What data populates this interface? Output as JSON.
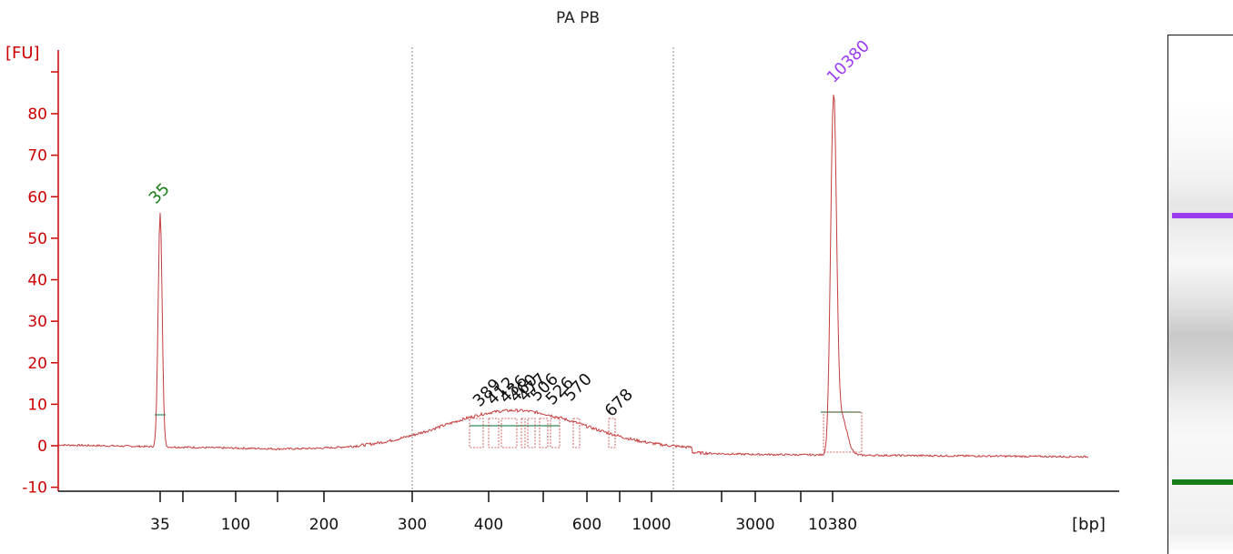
{
  "title": "PA PB",
  "chart_data": {
    "type": "line",
    "title": "PA PB",
    "ylabel": "[FU]",
    "xlabel": "[bp]",
    "ylim": [
      -12,
      98
    ],
    "y_ticks": [
      "-10",
      "0",
      "10",
      "20",
      "30",
      "40",
      "50",
      "60",
      "70",
      "80"
    ],
    "x_tick_labels": [
      "35",
      "100",
      "200",
      "300",
      "400",
      "600",
      "1000",
      "3000",
      "10380"
    ],
    "vertical_markers": [
      "300",
      "1000"
    ],
    "peak_labels": {
      "marker_low": {
        "label": "35",
        "color": "#1a7f1a"
      },
      "marker_high": {
        "label": "10380",
        "color": "#9b3cf0"
      },
      "sample": [
        "389",
        "412",
        "436",
        "460",
        "477",
        "506",
        "526",
        "570",
        "678"
      ]
    },
    "series": [
      {
        "color": "#c43c3c",
        "points_bp_fu": [
          [
            35,
            56
          ],
          [
            100,
            -0.5
          ],
          [
            200,
            -0.8
          ],
          [
            300,
            1
          ],
          [
            400,
            6.5
          ],
          [
            460,
            8
          ],
          [
            520,
            7.8
          ],
          [
            600,
            6.8
          ],
          [
            678,
            5
          ],
          [
            1000,
            1
          ],
          [
            3000,
            -1
          ],
          [
            10380,
            86
          ],
          [
            20000,
            -2.5
          ]
        ]
      }
    ],
    "colors": {
      "axis": "#cc0000",
      "trace": "#c43c3c",
      "baseline": "#2e8b57",
      "gel_upper_band": "#9b3cf0",
      "gel_lower_band": "#1a7f1a"
    }
  },
  "gel": {
    "upper_band_color": "#9b3cf0",
    "lower_band_color": "#1a7f1a"
  }
}
